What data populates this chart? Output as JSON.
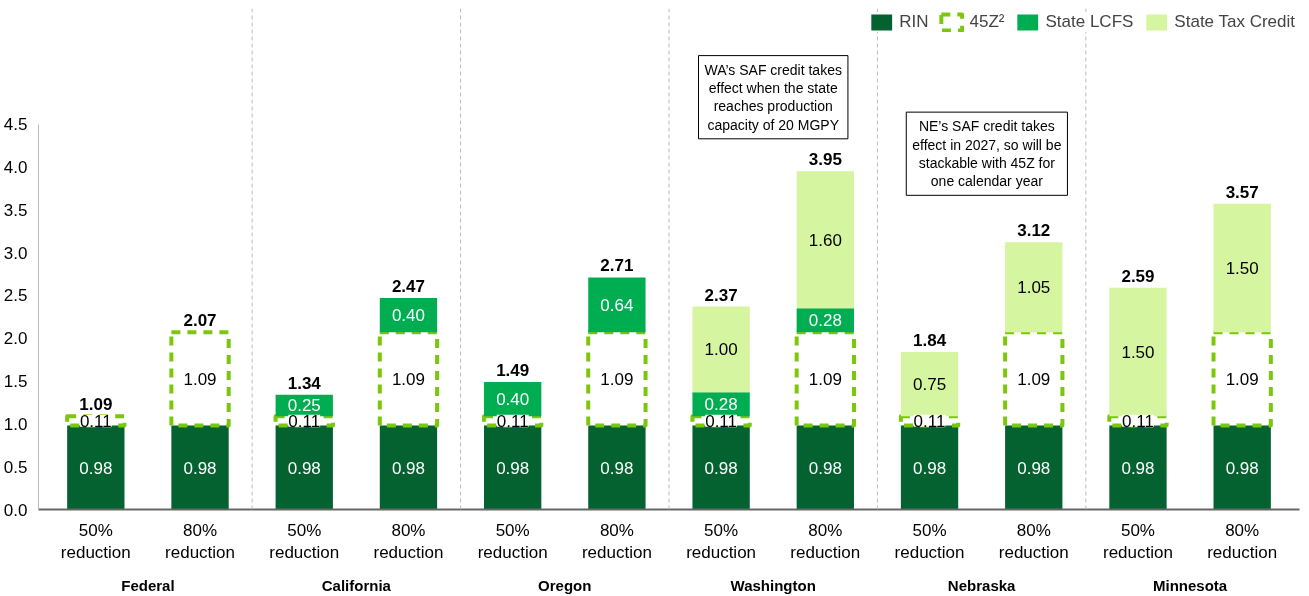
{
  "chart_data": {
    "type": "bar",
    "stacked": true,
    "categories": [
      "50%\nreduction",
      "80%\nreduction",
      "50%\nreduction",
      "80%\nreduction",
      "50%\nreduction",
      "80%\nreduction",
      "50%\nreduction",
      "80%\nreduction",
      "50%\nreduction",
      "80%\nreduction",
      "50%\nreduction",
      "80%\nreduction"
    ],
    "series": [
      {
        "name": "RIN",
        "color": "#03622f",
        "values": [
          0.98,
          0.98,
          0.98,
          0.98,
          0.98,
          0.98,
          0.98,
          0.98,
          0.98,
          0.98,
          0.98,
          0.98
        ],
        "value_labels": [
          "0.98",
          "0.98",
          "0.98",
          "0.98",
          "0.98",
          "0.98",
          "0.98",
          "0.98",
          "0.98",
          "0.98",
          "0.98",
          "0.98"
        ]
      },
      {
        "name": "45Z²",
        "color": "#7ac70c",
        "line_style": "dashed",
        "values": [
          0.11,
          1.09,
          0.11,
          1.09,
          0.11,
          1.09,
          0.11,
          1.09,
          0.11,
          1.09,
          0.11,
          1.09
        ],
        "value_labels": [
          "0.11",
          "1.09",
          "0.11",
          "1.09",
          "0.11",
          "1.09",
          "0.11",
          "1.09",
          "0.11",
          "1.09",
          "0.11",
          "1.09"
        ]
      },
      {
        "name": "State LCFS",
        "color": "#00ad50",
        "values": [
          null,
          null,
          0.25,
          0.4,
          0.4,
          0.64,
          0.28,
          0.28,
          null,
          null,
          null,
          null
        ],
        "value_labels": [
          null,
          null,
          "0.25",
          "0.40",
          "0.40",
          "0.64",
          "0.28",
          "0.28",
          null,
          null,
          null,
          null
        ]
      },
      {
        "name": "State Tax Credit",
        "color": "#d5f5a0",
        "values": [
          null,
          null,
          null,
          null,
          null,
          null,
          1.0,
          1.6,
          0.75,
          1.05,
          1.5,
          1.5
        ],
        "value_labels": [
          null,
          null,
          null,
          null,
          null,
          null,
          "1.00",
          "1.60",
          "0.75",
          "1.05",
          "1.50",
          "1.50"
        ]
      }
    ],
    "totals": [
      "1.09",
      "2.07",
      "1.34",
      "2.47",
      "1.49",
      "2.71",
      "2.37",
      "3.95",
      "1.84",
      "3.12",
      "2.59",
      "3.57"
    ],
    "ylim": [
      0,
      4.5
    ],
    "yticks": [
      {
        "value": 0,
        "label": "0.0"
      },
      {
        "value": 0.5,
        "label": "0.5"
      },
      {
        "value": 1,
        "label": "1.0"
      },
      {
        "value": 1.5,
        "label": "1.5"
      },
      {
        "value": 2,
        "label": "2.0"
      },
      {
        "value": 2.5,
        "label": "2.5"
      },
      {
        "value": 3,
        "label": "3.0"
      },
      {
        "value": 3.5,
        "label": "3.5"
      },
      {
        "value": 4,
        "label": "4.0"
      },
      {
        "value": 4.5,
        "label": "4.5"
      }
    ],
    "grid": false,
    "legend": "top right",
    "annotations": [
      "Federal",
      "California",
      "Oregon",
      "Washington",
      "Nebraska",
      "Minnesota",
      "WA’s SAF credit takes\neffect when the state\nreaches production\ncapacity of 20 MGPY",
      "NE’s SAF credit takes\neffect in 2027, so will be\nstackable with 45Z for\none calendar year"
    ]
  }
}
